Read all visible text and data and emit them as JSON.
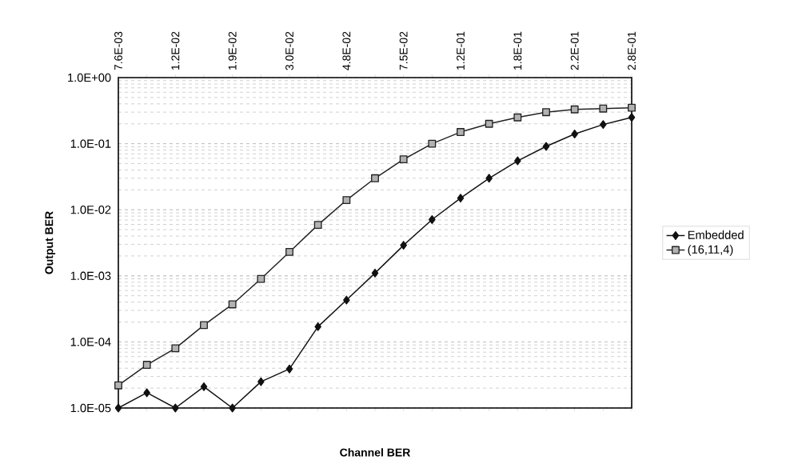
{
  "chart_data": {
    "type": "line",
    "xlabel": "Channel BER",
    "ylabel": "Output BER",
    "categories": [
      "7.6E-03",
      null,
      "1.2E-02",
      null,
      "1.9E-02",
      null,
      "3.0E-02",
      null,
      "4.8E-02",
      null,
      "7.5E-02",
      null,
      "1.2E-01",
      null,
      "1.8E-01",
      null,
      "2.2E-01",
      null,
      "2.8E-01"
    ],
    "series": [
      {
        "name": "Embedded",
        "color": "#111111",
        "marker": "diamond",
        "values": [
          1e-05,
          1.7e-05,
          1e-05,
          2.1e-05,
          1e-05,
          2.5e-05,
          3.9e-05,
          0.00017,
          0.00043,
          0.0011,
          0.0029,
          0.0071,
          0.015,
          0.03,
          0.055,
          0.091,
          0.14,
          0.195,
          0.25
        ]
      },
      {
        "name": "(16,11,4)",
        "color": "#222222",
        "marker": "square",
        "values": [
          2.2e-05,
          4.5e-05,
          8e-05,
          0.00018,
          0.00037,
          0.0009,
          0.0023,
          0.0059,
          0.014,
          0.03,
          0.058,
          0.1,
          0.15,
          0.2,
          0.25,
          0.3,
          0.33,
          0.34,
          0.35
        ]
      }
    ],
    "log": "y",
    "ylim": [
      1e-05,
      1
    ],
    "yticks": [
      {
        "value": 1e-05,
        "label": "1.0E-05"
      },
      {
        "value": 0.0001,
        "label": "1.0E-04"
      },
      {
        "value": 0.001,
        "label": "1.0E-03"
      },
      {
        "value": 0.01,
        "label": "1.0E-02"
      },
      {
        "value": 0.1,
        "label": "1.0E-01"
      },
      {
        "value": 1,
        "label": "1.0E+00"
      }
    ],
    "grid": "y",
    "legend": "right",
    "line_style": "solid"
  }
}
